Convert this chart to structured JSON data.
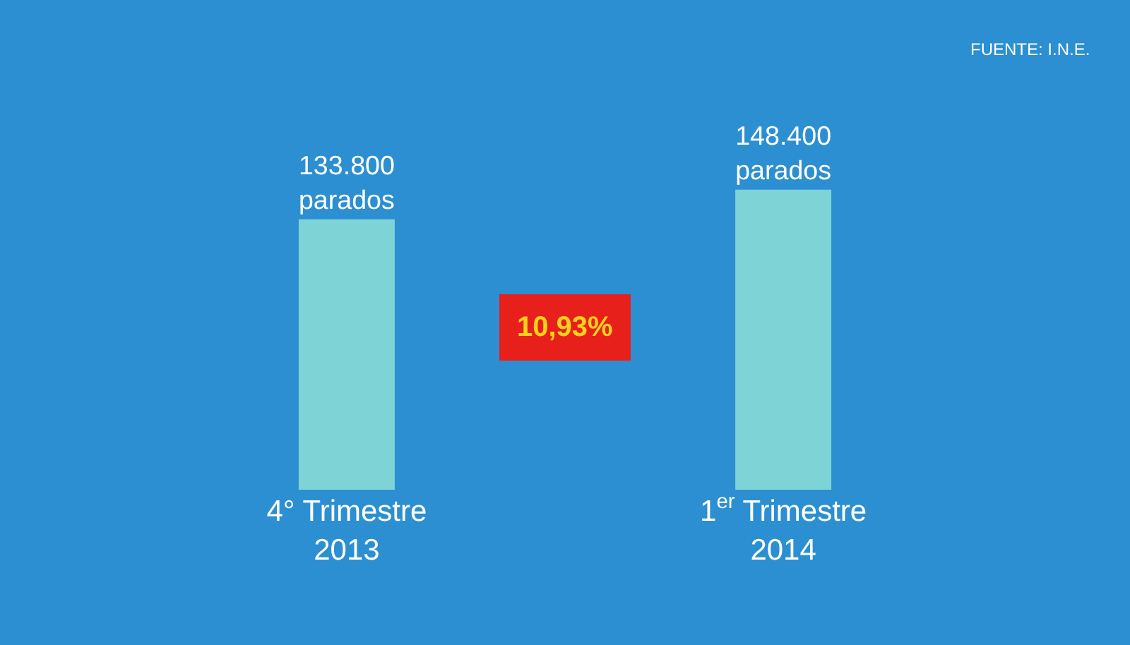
{
  "chart_data": {
    "type": "bar",
    "categories": [
      "4° Trimestre\n2013",
      "1$^{er}$ Trimestre\n2014"
    ],
    "values": [
      133800,
      148400
    ],
    "value_labels": [
      "133.800\nparados",
      "148.400\nparados"
    ],
    "color": "#7ed3d6",
    "annotations": [
      "FUENTE: I.N.E.",
      "10,93%"
    ]
  }
}
